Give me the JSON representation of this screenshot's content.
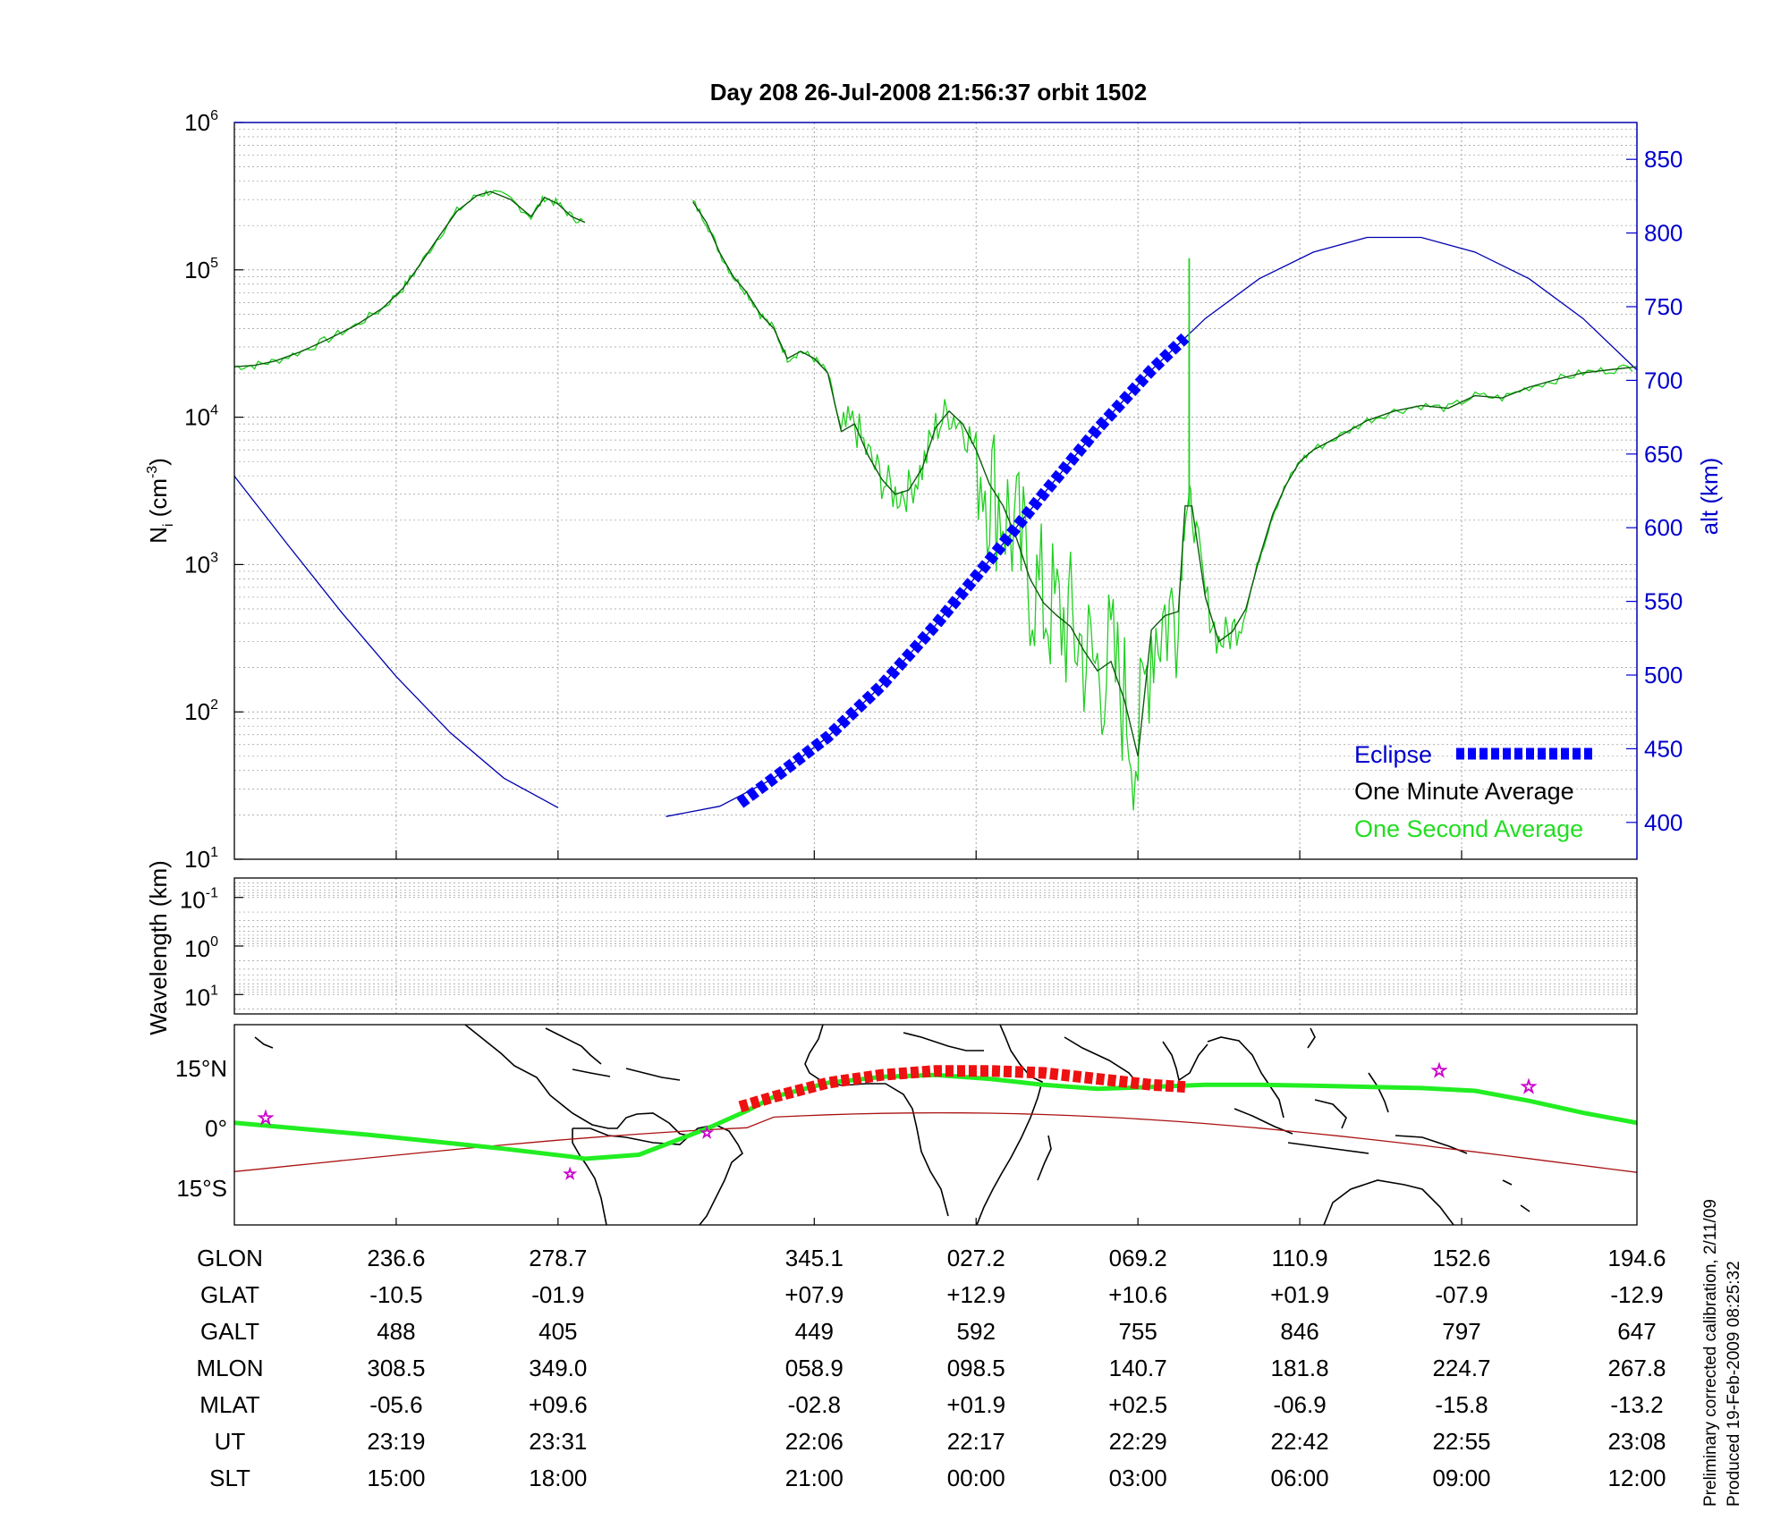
{
  "chart_data": [
    {
      "type": "line",
      "title": "Day 208  26-Jul-2008 21:56:37   orbit 1502",
      "ylabel_left": {
        "base": "N",
        "sub": "i",
        "unit": " (cm",
        "sup": "-3",
        "close": ")"
      },
      "ylabel_right": "alt (km)",
      "yscale_left": "log",
      "ylim_left": [
        10,
        1000000
      ],
      "yticks_left": [
        {
          "base": "10",
          "exp": "1"
        },
        {
          "base": "10",
          "exp": "2"
        },
        {
          "base": "10",
          "exp": "3"
        },
        {
          "base": "10",
          "exp": "4"
        },
        {
          "base": "10",
          "exp": "5"
        },
        {
          "base": "10",
          "exp": "6"
        }
      ],
      "ylim_right": [
        375,
        875
      ],
      "yticks_right": [
        "400",
        "450",
        "500",
        "550",
        "600",
        "650",
        "700",
        "750",
        "800",
        "850"
      ],
      "x_relative_minutes_range": [
        0,
        104
      ],
      "grid": true,
      "legend_position": "bottom-right",
      "legend": [
        {
          "label": "Eclipse",
          "color": "#0000ff",
          "style": "thick dotted"
        },
        {
          "label": "One Minute Average",
          "color": "#000000",
          "style": "line"
        },
        {
          "label": "One Second Average",
          "color": "#00dd00",
          "style": "line"
        }
      ],
      "colors": {
        "density_1min": "#0b5a0b",
        "density_1s": "#20d020",
        "altitude": "#0000b0",
        "eclipse": "#0000ff",
        "axis_right": "#0000cc"
      },
      "series": [
        {
          "name": "One Minute Average",
          "x": [
            0,
            1.5,
            3,
            5,
            7,
            9,
            11,
            12.5,
            13.5,
            15,
            16.5,
            18,
            19,
            20.5,
            22,
            23,
            24,
            25,
            26,
            27,
            27.8,
            29,
            30,
            31,
            33,
            34,
            35,
            36,
            37,
            38,
            39,
            40,
            41,
            42,
            43,
            44,
            45,
            46,
            47,
            48,
            49,
            50,
            51,
            52,
            53,
            54,
            55,
            56,
            57,
            58,
            59,
            60,
            61,
            62,
            63,
            64,
            65,
            66,
            67,
            68,
            69,
            70,
            70.5,
            71,
            72,
            73,
            74,
            75,
            76,
            77,
            78,
            79,
            80,
            82,
            84,
            86,
            88,
            90,
            92,
            94,
            96,
            98,
            100,
            102,
            104
          ],
          "values": [
            22000,
            22500,
            24000,
            28000,
            34000,
            42000,
            55000,
            75000,
            100000,
            160000,
            250000,
            320000,
            340000,
            300000,
            230000,
            310000,
            280000,
            230000,
            210000,
            null,
            null,
            null,
            null,
            null,
            null,
            290000,
            210000,
            130000,
            90000,
            70000,
            50000,
            40000,
            25000,
            28000,
            25000,
            20000,
            8000,
            9000,
            5500,
            3800,
            3000,
            3200,
            4500,
            8500,
            11000,
            9000,
            6000,
            3500,
            2500,
            1500,
            800,
            550,
            450,
            380,
            260,
            190,
            220,
            120,
            50,
            360,
            450,
            480,
            2500,
            2500,
            600,
            300,
            350,
            500,
            1100,
            2200,
            3500,
            5000,
            6000,
            7500,
            9500,
            11000,
            12000,
            11500,
            14000,
            13500,
            16000,
            18000,
            20000,
            21000,
            22000
          ]
        },
        {
          "name": "alt (km)",
          "x": [
            0,
            4,
            8,
            12,
            16,
            20,
            24,
            26,
            27,
            32,
            36,
            40,
            44,
            48,
            52,
            56,
            60,
            64,
            68,
            72,
            76,
            80,
            84,
            88,
            92,
            96,
            100,
            104
          ],
          "values": [
            635,
            588,
            542,
            499,
            461,
            430,
            410,
            405,
            404,
            404,
            411,
            430,
            458,
            493,
            534,
            578,
            623,
            667,
            707,
            742,
            769,
            787,
            797,
            797,
            787,
            769,
            742,
            707
          ]
        },
        {
          "name": "Eclipse",
          "x": [
            37.5,
            40,
            44,
            48,
            52,
            56,
            60,
            64,
            68,
            70.5
          ],
          "values": [
            413,
            430,
            458,
            493,
            534,
            578,
            623,
            667,
            707,
            729
          ]
        }
      ]
    },
    {
      "type": "heatmap",
      "ylabel": "Wavelength (km)",
      "yscale": "log",
      "yticks": [
        {
          "base": "10",
          "exp": "-1"
        },
        {
          "base": "10",
          "exp": "0"
        },
        {
          "base": "10",
          "exp": "1"
        }
      ],
      "grid": true
    },
    {
      "type": "map",
      "y_tick_labels": [
        "15°N",
        "0°",
        "15°S"
      ],
      "colors": {
        "satellite_track": "#22ee22",
        "eclipse_track": "#ee1111",
        "magnetic_equator": "#aa1111",
        "stars": "#cc00cc",
        "coastline": "#000000"
      },
      "satellite_track_lat": [
        [
          0,
          0.5
        ],
        [
          10,
          -2.5
        ],
        [
          20,
          -6
        ],
        [
          25,
          -8
        ],
        [
          26,
          -8.5
        ],
        [
          30,
          -7.5
        ],
        [
          35,
          -1
        ],
        [
          38,
          3.5
        ],
        [
          40,
          7
        ],
        [
          44,
          10.5
        ],
        [
          48,
          12
        ],
        [
          52,
          12.5
        ],
        [
          56,
          11.5
        ],
        [
          60,
          10
        ],
        [
          64,
          9
        ],
        [
          68,
          9.5
        ],
        [
          72,
          10
        ],
        [
          76,
          10
        ],
        [
          80,
          9.8
        ],
        [
          84,
          9.5
        ],
        [
          88,
          9.2
        ],
        [
          92,
          8.5
        ],
        [
          96,
          6
        ],
        [
          100,
          3
        ],
        [
          104,
          0.5
        ]
      ],
      "eclipse_track_lat": [
        [
          37.5,
          4.5
        ],
        [
          40,
          7
        ],
        [
          44,
          10.5
        ],
        [
          48,
          12.5
        ],
        [
          52,
          13.5
        ],
        [
          56,
          13.5
        ],
        [
          60,
          13
        ],
        [
          64,
          11.5
        ],
        [
          68,
          10
        ],
        [
          70.5,
          9.5
        ]
      ]
    },
    {
      "type": "table",
      "rows": [
        {
          "label": "GLON",
          "values": [
            "236.6",
            "278.7",
            "345.1",
            "027.2",
            "069.2",
            "110.9",
            "152.6",
            "194.6"
          ]
        },
        {
          "label": "GLAT",
          "values": [
            "-10.5",
            "-01.9",
            "+07.9",
            "+12.9",
            "+10.6",
            "+01.9",
            "-07.9",
            "-12.9"
          ]
        },
        {
          "label": "GALT",
          "values": [
            "488",
            "405",
            "449",
            "592",
            "755",
            "846",
            "797",
            "647"
          ]
        },
        {
          "label": "MLON",
          "values": [
            "308.5",
            "349.0",
            "058.9",
            "098.5",
            "140.7",
            "181.8",
            "224.7",
            "267.8"
          ]
        },
        {
          "label": "MLAT",
          "values": [
            "-05.6",
            "+09.6",
            "-02.8",
            "+01.9",
            "+02.5",
            "-06.9",
            "-15.8",
            "-13.2"
          ]
        },
        {
          "label": "UT",
          "values": [
            "23:19",
            "23:31",
            "22:06",
            "22:17",
            "22:29",
            "22:42",
            "22:55",
            "23:08"
          ]
        },
        {
          "label": "SLT",
          "values": [
            "15:00",
            "18:00",
            "21:00",
            "00:00",
            "03:00",
            "06:00",
            "09:00",
            "12:00"
          ]
        }
      ]
    }
  ],
  "footer": {
    "line1": "Preliminary corrected calibration, 2/11/09",
    "line2": "Produced 19-Feb-2009 08:25:32"
  }
}
